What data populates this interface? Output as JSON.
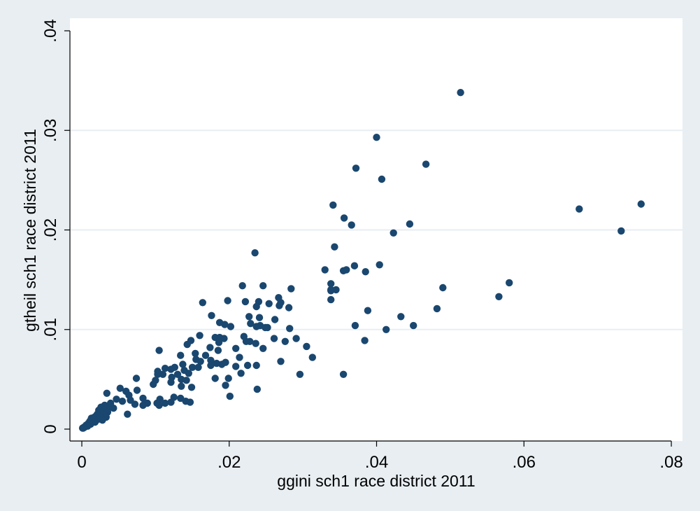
{
  "chart_data": {
    "type": "scatter",
    "xlabel": "ggini sch1 race district 2011",
    "ylabel": "gtheil sch1 race district 2011",
    "xlim": [
      0,
      0.08
    ],
    "ylim": [
      0,
      0.04
    ],
    "x_ticks": [
      {
        "value": 0,
        "label": "0"
      },
      {
        "value": 0.02,
        "label": ".02"
      },
      {
        "value": 0.04,
        "label": ".04"
      },
      {
        "value": 0.06,
        "label": ".06"
      },
      {
        "value": 0.08,
        "label": ".08"
      }
    ],
    "y_ticks": [
      {
        "value": 0,
        "label": "0"
      },
      {
        "value": 0.01,
        "label": ".01"
      },
      {
        "value": 0.02,
        "label": ".02"
      },
      {
        "value": 0.03,
        "label": ".03"
      },
      {
        "value": 0.04,
        "label": ".04"
      }
    ],
    "grid": "horizontal",
    "marker_color": "#1a476f",
    "points": [
      [
        0.0514,
        0.0338
      ],
      [
        0.04,
        0.0293
      ],
      [
        0.0467,
        0.0266
      ],
      [
        0.0372,
        0.0262
      ],
      [
        0.0407,
        0.0251
      ],
      [
        0.0759,
        0.0226
      ],
      [
        0.0341,
        0.0225
      ],
      [
        0.0675,
        0.0221
      ],
      [
        0.0356,
        0.0212
      ],
      [
        0.0366,
        0.0205
      ],
      [
        0.0445,
        0.0206
      ],
      [
        0.0732,
        0.0199
      ],
      [
        0.0423,
        0.0197
      ],
      [
        0.0343,
        0.0183
      ],
      [
        0.0235,
        0.0177
      ],
      [
        0.0404,
        0.0165
      ],
      [
        0.037,
        0.0164
      ],
      [
        0.033,
        0.016
      ],
      [
        0.0355,
        0.0159
      ],
      [
        0.0359,
        0.016
      ],
      [
        0.0385,
        0.0158
      ],
      [
        0.058,
        0.0147
      ],
      [
        0.0338,
        0.0146
      ],
      [
        0.0218,
        0.0144
      ],
      [
        0.0246,
        0.0144
      ],
      [
        0.049,
        0.0142
      ],
      [
        0.0284,
        0.0141
      ],
      [
        0.0338,
        0.014
      ],
      [
        0.0345,
        0.014
      ],
      [
        0.0338,
        0.0139
      ],
      [
        0.0566,
        0.0133
      ],
      [
        0.0267,
        0.0132
      ],
      [
        0.0338,
        0.013
      ],
      [
        0.0198,
        0.0129
      ],
      [
        0.024,
        0.0128
      ],
      [
        0.0164,
        0.0127
      ],
      [
        0.0222,
        0.0128
      ],
      [
        0.027,
        0.0127
      ],
      [
        0.0254,
        0.0126
      ],
      [
        0.0237,
        0.0123
      ],
      [
        0.0268,
        0.0124
      ],
      [
        0.0281,
        0.0122
      ],
      [
        0.0482,
        0.0121
      ],
      [
        0.0388,
        0.0119
      ],
      [
        0.0176,
        0.0114
      ],
      [
        0.0227,
        0.0113
      ],
      [
        0.0433,
        0.0113
      ],
      [
        0.0241,
        0.0112
      ],
      [
        0.0262,
        0.011
      ],
      [
        0.0187,
        0.0107
      ],
      [
        0.0194,
        0.0105
      ],
      [
        0.0229,
        0.0106
      ],
      [
        0.0242,
        0.0104
      ],
      [
        0.0252,
        0.0102
      ],
      [
        0.0371,
        0.0104
      ],
      [
        0.045,
        0.0104
      ],
      [
        0.0202,
        0.0103
      ],
      [
        0.0237,
        0.0103
      ],
      [
        0.0249,
        0.0102
      ],
      [
        0.0282,
        0.0101
      ],
      [
        0.0413,
        0.01
      ],
      [
        0.0181,
        0.0092
      ],
      [
        0.0187,
        0.0092
      ],
      [
        0.022,
        0.0093
      ],
      [
        0.0193,
        0.0091
      ],
      [
        0.016,
        0.0094
      ],
      [
        0.0291,
        0.0091
      ],
      [
        0.0261,
        0.0091
      ],
      [
        0.0384,
        0.0089
      ],
      [
        0.0148,
        0.0089
      ],
      [
        0.0228,
        0.0088
      ],
      [
        0.0276,
        0.0088
      ],
      [
        0.0223,
        0.0088
      ],
      [
        0.0186,
        0.0087
      ],
      [
        0.0236,
        0.0086
      ],
      [
        0.0143,
        0.0085
      ],
      [
        0.0305,
        0.0083
      ],
      [
        0.0174,
        0.0082
      ],
      [
        0.0246,
        0.0081
      ],
      [
        0.0209,
        0.0081
      ],
      [
        0.0105,
        0.0079
      ],
      [
        0.0185,
        0.0079
      ],
      [
        0.0154,
        0.0076
      ],
      [
        0.0168,
        0.0074
      ],
      [
        0.0134,
        0.0074
      ],
      [
        0.0214,
        0.0072
      ],
      [
        0.0313,
        0.0072
      ],
      [
        0.0175,
        0.0069
      ],
      [
        0.0155,
        0.007
      ],
      [
        0.0161,
        0.0068
      ],
      [
        0.0195,
        0.0067
      ],
      [
        0.027,
        0.0068
      ],
      [
        0.0183,
        0.0066
      ],
      [
        0.019,
        0.0065
      ],
      [
        0.0209,
        0.0063
      ],
      [
        0.0175,
        0.0064
      ],
      [
        0.0225,
        0.0064
      ],
      [
        0.0237,
        0.0064
      ],
      [
        0.0137,
        0.0065
      ],
      [
        0.015,
        0.0062
      ],
      [
        0.0158,
        0.0062
      ],
      [
        0.0126,
        0.0062
      ],
      [
        0.0113,
        0.0061
      ],
      [
        0.0121,
        0.006
      ],
      [
        0.0103,
        0.0058
      ],
      [
        0.0139,
        0.0059
      ],
      [
        0.0216,
        0.0056
      ],
      [
        0.0296,
        0.0055
      ],
      [
        0.0355,
        0.0055
      ],
      [
        0.0145,
        0.0056
      ],
      [
        0.013,
        0.0055
      ],
      [
        0.0103,
        0.0055
      ],
      [
        0.011,
        0.0055
      ],
      [
        0.0122,
        0.0052
      ],
      [
        0.0181,
        0.0051
      ],
      [
        0.0074,
        0.0051
      ],
      [
        0.0199,
        0.0051
      ],
      [
        0.0135,
        0.005
      ],
      [
        0.0142,
        0.0049
      ],
      [
        0.01,
        0.0049
      ],
      [
        0.0121,
        0.0047
      ],
      [
        0.0097,
        0.0045
      ],
      [
        0.0195,
        0.0044
      ],
      [
        0.0135,
        0.0043
      ],
      [
        0.0149,
        0.0042
      ],
      [
        0.0052,
        0.0041
      ],
      [
        0.0238,
        0.004
      ],
      [
        0.0075,
        0.0039
      ],
      [
        0.006,
        0.0038
      ],
      [
        0.0034,
        0.0036
      ],
      [
        0.0064,
        0.0034
      ],
      [
        0.0201,
        0.0033
      ],
      [
        0.0125,
        0.0032
      ],
      [
        0.0134,
        0.0031
      ],
      [
        0.0083,
        0.0031
      ],
      [
        0.0106,
        0.003
      ],
      [
        0.0047,
        0.003
      ],
      [
        0.0066,
        0.0029
      ],
      [
        0.0055,
        0.0028
      ],
      [
        0.0141,
        0.0028
      ],
      [
        0.0121,
        0.0027
      ],
      [
        0.0147,
        0.0027
      ],
      [
        0.0113,
        0.0026
      ],
      [
        0.0039,
        0.0026
      ],
      [
        0.0089,
        0.0026
      ],
      [
        0.0102,
        0.0026
      ],
      [
        0.0072,
        0.0025
      ],
      [
        0.0105,
        0.0024
      ],
      [
        0.0031,
        0.0024
      ],
      [
        0.0083,
        0.0024
      ],
      [
        0.0037,
        0.0022
      ],
      [
        0.0026,
        0.0022
      ],
      [
        0.0033,
        0.0021
      ],
      [
        0.0043,
        0.0021
      ],
      [
        0.0023,
        0.0019
      ],
      [
        0.0029,
        0.0018
      ],
      [
        0.0035,
        0.0017
      ],
      [
        0.0027,
        0.0016
      ],
      [
        0.0062,
        0.0015
      ],
      [
        0.0021,
        0.0015
      ],
      [
        0.0031,
        0.0014
      ],
      [
        0.0019,
        0.0013
      ],
      [
        0.0025,
        0.0013
      ],
      [
        0.0017,
        0.0012
      ],
      [
        0.0033,
        0.0012
      ],
      [
        0.0013,
        0.0011
      ],
      [
        0.0023,
        0.001
      ],
      [
        0.0015,
        0.0009
      ],
      [
        0.0028,
        0.0009
      ],
      [
        0.0011,
        0.0008
      ],
      [
        0.0018,
        0.0007
      ],
      [
        0.0009,
        0.0006
      ],
      [
        0.0012,
        0.0005
      ],
      [
        0.0006,
        0.0004
      ],
      [
        0.0008,
        0.0003
      ],
      [
        0.0004,
        0.0002
      ],
      [
        0.0003,
        0.0002
      ],
      [
        0.0001,
        0.0001
      ],
      [
        0.0002,
        0.0001
      ]
    ]
  }
}
